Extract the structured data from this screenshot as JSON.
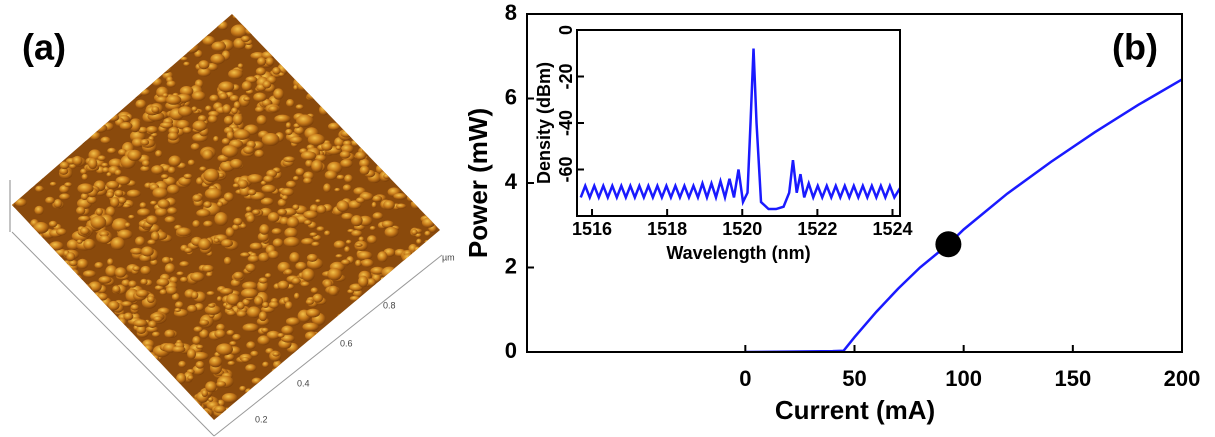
{
  "afm_image": {
    "label": "(a)",
    "axis_ticks": [
      "0.2",
      "0.4",
      "0.6",
      "0.8"
    ],
    "axis_unit": "µm"
  },
  "chart_data": [
    {
      "type": "line",
      "label": "(b)",
      "x_label": "Current (mA)",
      "y_label": "Power (mW)",
      "xlim": [
        -100,
        200
      ],
      "xticks": [
        0,
        50,
        100,
        150,
        200
      ],
      "ylim": [
        0,
        8
      ],
      "yticks": [
        0,
        2,
        4,
        6,
        8
      ],
      "series": [
        {
          "color": "#1a1aff",
          "x": [
            0,
            20,
            40,
            45,
            50,
            60,
            70,
            80,
            93,
            100,
            120,
            140,
            160,
            180,
            200
          ],
          "values": [
            0,
            0.01,
            0.02,
            0.03,
            0.35,
            0.95,
            1.5,
            2.0,
            2.55,
            2.9,
            3.75,
            4.5,
            5.2,
            5.85,
            6.45
          ]
        }
      ],
      "marker": {
        "x": 93,
        "y": 2.55,
        "color": "#000000"
      }
    },
    {
      "type": "line",
      "x_label": "Wavelength (nm)",
      "y_label": "Density (dBm)",
      "xlim": [
        1515.6,
        1524.2
      ],
      "xticks": [
        1516,
        1518,
        1520,
        1522,
        1524
      ],
      "ylim": [
        -80,
        0
      ],
      "yticks": [
        0,
        -20,
        -40,
        -60
      ],
      "series": [
        {
          "color": "#1a1aff",
          "x": [
            1515.7,
            1515.82,
            1515.94,
            1516.06,
            1516.18,
            1516.3,
            1516.42,
            1516.54,
            1516.66,
            1516.78,
            1516.9,
            1517.02,
            1517.14,
            1517.26,
            1517.38,
            1517.5,
            1517.62,
            1517.74,
            1517.86,
            1517.98,
            1518.1,
            1518.22,
            1518.34,
            1518.46,
            1518.58,
            1518.7,
            1518.82,
            1518.94,
            1519.06,
            1519.18,
            1519.3,
            1519.42,
            1519.54,
            1519.66,
            1519.78,
            1519.9,
            1520.02,
            1520.14,
            1520.22,
            1520.3,
            1520.38,
            1520.5,
            1520.7,
            1520.9,
            1521.1,
            1521.25,
            1521.35,
            1521.45,
            1521.55,
            1521.65,
            1521.77,
            1521.89,
            1522.01,
            1522.13,
            1522.25,
            1522.37,
            1522.49,
            1522.61,
            1522.73,
            1522.85,
            1522.97,
            1523.09,
            1523.21,
            1523.33,
            1523.45,
            1523.57,
            1523.69,
            1523.81,
            1523.93,
            1524.05,
            1524.2
          ],
          "values": [
            -72,
            -67,
            -72,
            -67,
            -72,
            -67,
            -72,
            -67,
            -72,
            -67,
            -72,
            -67,
            -72,
            -67,
            -72,
            -67,
            -72,
            -67,
            -72,
            -67,
            -72,
            -67,
            -72,
            -67,
            -72,
            -67,
            -72,
            -66,
            -72,
            -66,
            -72,
            -65,
            -72,
            -64,
            -72,
            -60,
            -74,
            -70,
            -40,
            -8,
            -40,
            -74,
            -77,
            -77,
            -76,
            -70,
            -56,
            -70,
            -62,
            -72,
            -66,
            -72,
            -67,
            -72,
            -67,
            -72,
            -67,
            -72,
            -67,
            -72,
            -67,
            -72,
            -67,
            -72,
            -67,
            -72,
            -67,
            -72,
            -67,
            -72,
            -68
          ]
        }
      ]
    }
  ]
}
